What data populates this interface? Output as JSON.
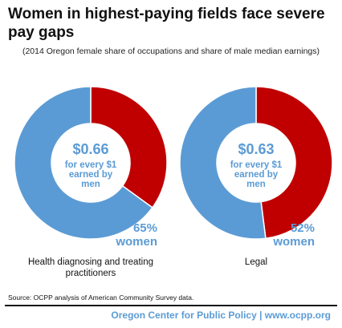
{
  "title": "Women in highest-paying fields face severe pay gaps",
  "subtitle": "(2014 Oregon female share of occupations and share of male median earnings)",
  "source": "Source: OCPP analysis of American Community Survey data.",
  "footer": "Oregon Center for Public Policy | www.ocpp.org",
  "colors": {
    "women": "#5b9bd5",
    "men": "#c00000",
    "text": "#111111"
  },
  "chart_data": [
    {
      "type": "pie",
      "category": "Health diagnosing and treating practitioners",
      "category_lines": [
        "Health diagnosing and treating",
        "practitioners"
      ],
      "female_share_pct": 65,
      "share_label": "65%",
      "share_word": "women",
      "earnings": "$0.66",
      "earnings_text": [
        "for every $1",
        "earned by",
        "men"
      ]
    },
    {
      "type": "pie",
      "category": "Legal",
      "category_lines": [
        "Legal"
      ],
      "female_share_pct": 52,
      "share_label": "52%",
      "share_word": "women",
      "earnings": "$0.63",
      "earnings_text": [
        "for every $1",
        "earned by",
        "men"
      ]
    }
  ]
}
